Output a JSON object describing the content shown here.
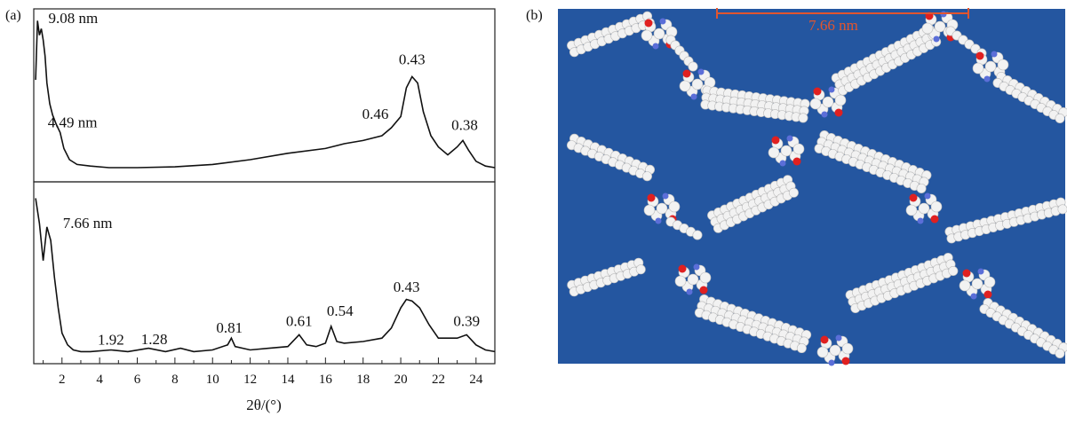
{
  "panel_a": {
    "tag": "(a)"
  },
  "panel_b": {
    "tag": "(b)",
    "scale_label": "7.66 nm",
    "colors": {
      "background": "#2456a0",
      "scale_bar": "#e2552e",
      "carbon": "#f2f2f2",
      "oxygen": "#e02020",
      "nitrogen": "#5b6ed8"
    }
  },
  "chart_data": [
    {
      "type": "line",
      "title": "",
      "xlabel": "2θ/(°)",
      "ylabel": "",
      "xlim": [
        0.5,
        25
      ],
      "xticks": [
        "2",
        "4",
        "6",
        "8",
        "10",
        "12",
        "14",
        "16",
        "18",
        "20",
        "22",
        "24"
      ],
      "series": [
        {
          "x": [
            0.6,
            0.7,
            0.8,
            0.9,
            1.0,
            1.1,
            1.2,
            1.35,
            1.5,
            1.7,
            1.9,
            2.1,
            2.4,
            2.8,
            3.5,
            4.5,
            6,
            8,
            10,
            12,
            14,
            16,
            17,
            18,
            19,
            19.5,
            20,
            20.3,
            20.6,
            20.9,
            21.2,
            21.6,
            22,
            22.5,
            23,
            23.3,
            23.6,
            24,
            24.5,
            25
          ],
          "y": [
            0.6,
            0.97,
            0.88,
            0.92,
            0.85,
            0.75,
            0.58,
            0.45,
            0.38,
            0.32,
            0.27,
            0.17,
            0.1,
            0.07,
            0.06,
            0.05,
            0.05,
            0.055,
            0.07,
            0.1,
            0.14,
            0.17,
            0.2,
            0.22,
            0.25,
            0.3,
            0.37,
            0.55,
            0.62,
            0.58,
            0.4,
            0.25,
            0.18,
            0.13,
            0.18,
            0.22,
            0.16,
            0.09,
            0.06,
            0.05
          ]
        }
      ],
      "annotations": [
        {
          "text": "9.08 nm",
          "x": 0.9
        },
        {
          "text": "4.49 nm",
          "x": 1.9
        },
        {
          "text": "0.46",
          "x": 19.5
        },
        {
          "text": "0.43",
          "x": 20.6
        },
        {
          "text": "0.38",
          "x": 23.3
        }
      ]
    },
    {
      "type": "line",
      "title": "",
      "xlabel": "2θ/(°)",
      "ylabel": "",
      "xlim": [
        0.5,
        25
      ],
      "series": [
        {
          "x": [
            0.6,
            0.8,
            1.0,
            1.2,
            1.4,
            1.6,
            1.8,
            2.0,
            2.3,
            2.6,
            3,
            3.5,
            4.6,
            5.5,
            6.6,
            7.5,
            8.3,
            9,
            10,
            10.8,
            11,
            11.2,
            12,
            13,
            14,
            14.6,
            15,
            15.5,
            16,
            16.3,
            16.6,
            17,
            18,
            19,
            19.5,
            20,
            20.3,
            20.6,
            21,
            21.5,
            22,
            22.5,
            23,
            23.5,
            24,
            24.5,
            25
          ],
          "y": [
            0.95,
            0.8,
            0.58,
            0.78,
            0.7,
            0.48,
            0.3,
            0.15,
            0.08,
            0.05,
            0.04,
            0.04,
            0.05,
            0.04,
            0.06,
            0.04,
            0.06,
            0.04,
            0.05,
            0.08,
            0.12,
            0.07,
            0.05,
            0.06,
            0.07,
            0.14,
            0.08,
            0.07,
            0.09,
            0.19,
            0.1,
            0.09,
            0.1,
            0.12,
            0.18,
            0.3,
            0.35,
            0.34,
            0.3,
            0.2,
            0.12,
            0.12,
            0.12,
            0.14,
            0.08,
            0.05,
            0.04
          ]
        }
      ],
      "annotations": [
        {
          "text": "7.66 nm",
          "x": 1.1
        },
        {
          "text": "1.92",
          "x": 4.6
        },
        {
          "text": "1.28",
          "x": 6.9
        },
        {
          "text": "0.81",
          "x": 10.9
        },
        {
          "text": "0.61",
          "x": 14.6
        },
        {
          "text": "0.54",
          "x": 16.3
        },
        {
          "text": "0.43",
          "x": 20.5
        },
        {
          "text": "0.39",
          "x": 23.5
        }
      ]
    }
  ]
}
